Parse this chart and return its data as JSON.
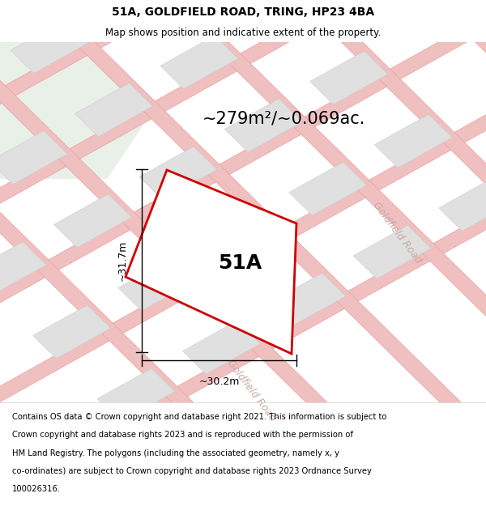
{
  "title": "51A, GOLDFIELD ROAD, TRING, HP23 4BA",
  "subtitle": "Map shows position and indicative extent of the property.",
  "area_label": "~279m²/~0.069ac.",
  "plot_label": "51A",
  "width_label": "~30.2m",
  "height_label": "~31.7m",
  "footer_lines": [
    "Contains OS data © Crown copyright and database right 2021. This information is subject to",
    "Crown copyright and database rights 2023 and is reproduced with the permission of",
    "HM Land Registry. The polygons (including the associated geometry, namely x, y",
    "co-ordinates) are subject to Crown copyright and database rights 2023 Ordnance Survey",
    "100026316."
  ],
  "map_bg": "#f7f5f5",
  "plot_fill": "#ffffff",
  "plot_edge": "#cc0000",
  "road_color": "#f0c0c0",
  "road_edge_color": "#e8a0a0",
  "building_fill": "#e0e0e0",
  "building_edge": "#cccccc",
  "green_fill": "#e8f0e8",
  "title_fontsize": 10,
  "subtitle_fontsize": 8.5,
  "area_fontsize": 15,
  "plot_label_fontsize": 18,
  "dim_fontsize": 9,
  "footer_fontsize": 7.2,
  "road_label_fontsize": 9,
  "road_label_color": "#c8a8a8"
}
